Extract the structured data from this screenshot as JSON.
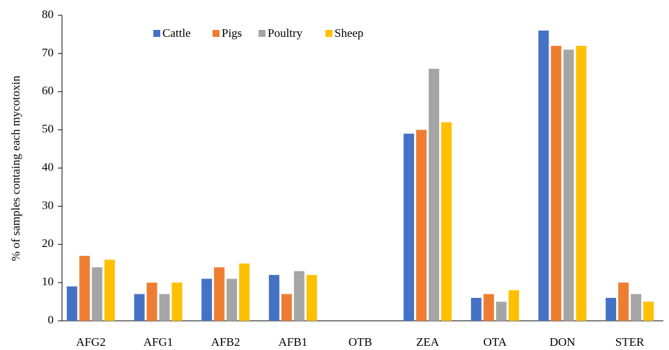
{
  "chart_data": {
    "type": "bar",
    "y_axis_label": "% of samples containg each mycotoxin",
    "categories": [
      "AFG2",
      "AFG1",
      "AFB2",
      "AFB1",
      "OTB",
      "ZEA",
      "OTA",
      "DON",
      "STER"
    ],
    "series": [
      {
        "name": "Cattle",
        "color": "#4472c4",
        "values": [
          9,
          7,
          11,
          12,
          0,
          49,
          6,
          76,
          6
        ]
      },
      {
        "name": "Pigs",
        "color": "#ed7d31",
        "values": [
          17,
          10,
          14,
          7,
          0,
          50,
          7,
          72,
          10
        ]
      },
      {
        "name": "Poultry",
        "color": "#a5a5a5",
        "values": [
          14,
          7,
          11,
          13,
          0,
          66,
          5,
          71,
          7
        ]
      },
      {
        "name": "Sheep",
        "color": "#ffc000",
        "values": [
          16,
          10,
          15,
          12,
          0,
          52,
          8,
          72,
          5
        ]
      }
    ],
    "ylim": [
      0,
      80
    ],
    "yticks": [
      0,
      10,
      20,
      30,
      40,
      50,
      60,
      70,
      80
    ],
    "grid": false,
    "legend": "top"
  }
}
